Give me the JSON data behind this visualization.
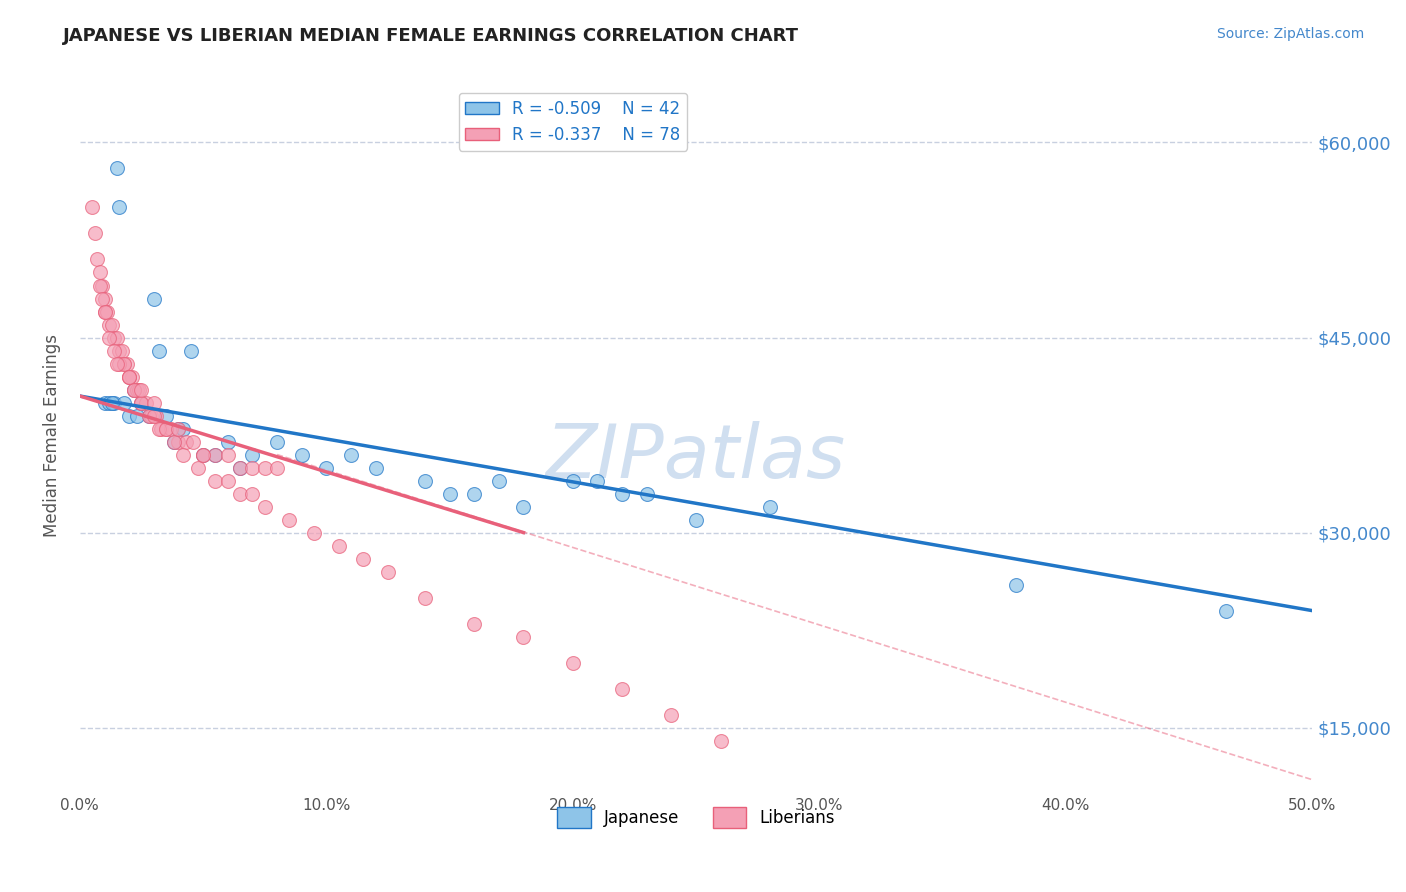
{
  "title": "JAPANESE VS LIBERIAN MEDIAN FEMALE EARNINGS CORRELATION CHART",
  "source_text": "Source: ZipAtlas.com",
  "ylabel": "Median Female Earnings",
  "xlim": [
    0.0,
    50.0
  ],
  "ylim": [
    10000,
    65000
  ],
  "yticks": [
    15000,
    30000,
    45000,
    60000
  ],
  "ytick_labels": [
    "$15,000",
    "$30,000",
    "$45,000",
    "$60,000"
  ],
  "xticks": [
    0.0,
    10.0,
    20.0,
    30.0,
    40.0,
    50.0
  ],
  "xtick_labels": [
    "0.0%",
    "10.0%",
    "20.0%",
    "30.0%",
    "40.0%",
    "50.0%"
  ],
  "R_japanese": -0.509,
  "N_japanese": 42,
  "R_liberian": -0.337,
  "N_liberian": 78,
  "japanese_color": "#8ec4e8",
  "liberian_color": "#f4a0b5",
  "regression_japanese_color": "#2176c7",
  "regression_liberian_color": "#e8607a",
  "watermark": "ZIPatlas",
  "watermark_color": "#d0dff0",
  "title_color": "#222222",
  "source_color": "#4488cc",
  "axis_label_color": "#555555",
  "tick_label_color": "#555555",
  "right_tick_color": "#4488cc",
  "grid_color": "#c8d0e0",
  "dash_line_color": "#f4a0b5",
  "japanese_x": [
    1.5,
    1.6,
    3.0,
    3.2,
    4.5,
    1.0,
    1.2,
    1.4,
    1.8,
    2.0,
    2.2,
    2.5,
    2.8,
    3.5,
    3.8,
    4.0,
    5.0,
    5.5,
    6.0,
    7.0,
    8.0,
    9.0,
    10.0,
    11.0,
    12.0,
    14.0,
    15.0,
    16.0,
    17.0,
    18.0,
    20.0,
    21.0,
    22.0,
    23.0,
    25.0,
    28.0,
    1.3,
    2.3,
    4.2,
    6.5,
    38.0,
    46.5
  ],
  "japanese_y": [
    58000,
    55000,
    48000,
    44000,
    44000,
    40000,
    40000,
    40000,
    40000,
    39000,
    41000,
    40000,
    39000,
    39000,
    37000,
    38000,
    36000,
    36000,
    37000,
    36000,
    37000,
    36000,
    35000,
    36000,
    35000,
    34000,
    33000,
    33000,
    34000,
    32000,
    34000,
    34000,
    33000,
    33000,
    31000,
    32000,
    40000,
    39000,
    38000,
    35000,
    26000,
    24000
  ],
  "liberian_x": [
    0.5,
    0.6,
    0.7,
    0.8,
    0.9,
    1.0,
    1.0,
    1.1,
    1.2,
    1.3,
    1.4,
    1.5,
    1.6,
    1.7,
    1.8,
    1.9,
    2.0,
    2.1,
    2.2,
    2.3,
    2.4,
    2.5,
    2.7,
    2.9,
    3.1,
    3.3,
    3.5,
    3.7,
    4.0,
    4.3,
    4.6,
    5.0,
    5.5,
    6.0,
    6.5,
    7.0,
    7.5,
    8.0,
    0.8,
    0.9,
    1.0,
    1.2,
    1.4,
    1.6,
    1.8,
    2.0,
    2.2,
    2.5,
    2.8,
    3.0,
    3.2,
    3.5,
    3.8,
    4.2,
    4.8,
    5.5,
    6.5,
    7.5,
    8.5,
    9.5,
    10.5,
    11.5,
    12.5,
    14.0,
    16.0,
    18.0,
    20.0,
    22.0,
    24.0,
    26.0,
    1.5,
    2.0,
    2.5,
    3.0,
    4.0,
    5.0,
    6.0,
    7.0
  ],
  "liberian_y": [
    55000,
    53000,
    51000,
    50000,
    49000,
    48000,
    47000,
    47000,
    46000,
    46000,
    45000,
    45000,
    44000,
    44000,
    43000,
    43000,
    42000,
    42000,
    41000,
    41000,
    41000,
    40000,
    40000,
    39000,
    39000,
    38000,
    38000,
    38000,
    37000,
    37000,
    37000,
    36000,
    36000,
    36000,
    35000,
    35000,
    35000,
    35000,
    49000,
    48000,
    47000,
    45000,
    44000,
    43000,
    43000,
    42000,
    41000,
    40000,
    39000,
    39000,
    38000,
    38000,
    37000,
    36000,
    35000,
    34000,
    33000,
    32000,
    31000,
    30000,
    29000,
    28000,
    27000,
    25000,
    23000,
    22000,
    20000,
    18000,
    16000,
    14000,
    43000,
    42000,
    41000,
    40000,
    38000,
    36000,
    34000,
    33000
  ],
  "jap_line_x0": 0.0,
  "jap_line_y0": 40500,
  "jap_line_x1": 50.0,
  "jap_line_y1": 24000,
  "lib_line_x0": 0.0,
  "lib_line_y0": 40500,
  "lib_line_x1": 18.0,
  "lib_line_y1": 30000,
  "dash_line_x0": 8.0,
  "dash_line_y0": 36000,
  "dash_line_x1": 50.0,
  "dash_line_y1": 11000
}
